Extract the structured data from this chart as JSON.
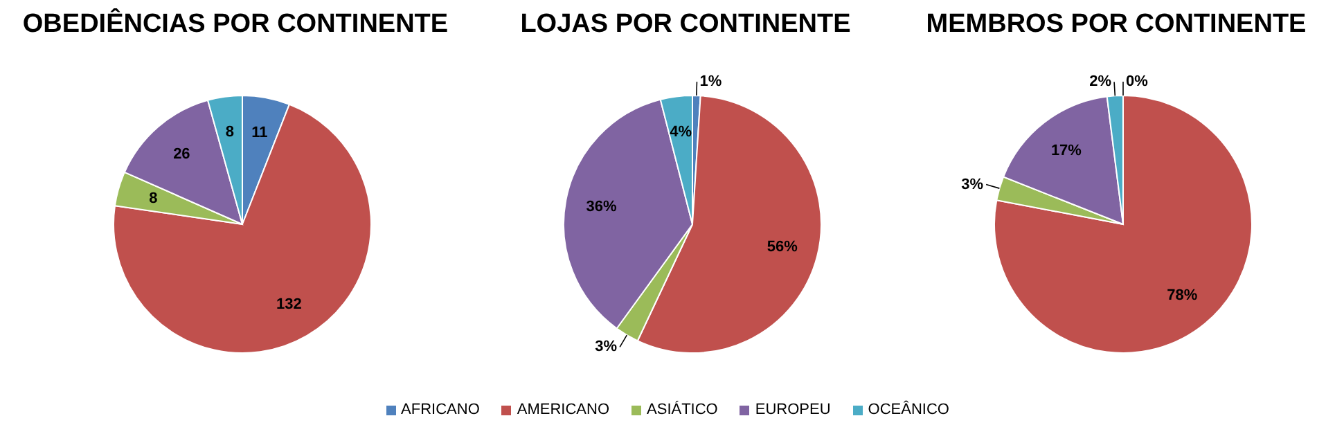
{
  "chart_data": {
    "type": "pie",
    "categories": [
      "AFRICANO",
      "AMERICANO",
      "ASIÁTICO",
      "EUROPEU",
      "OCEÂNICO"
    ],
    "colors": [
      "#4f81bd",
      "#c0504d",
      "#9bbb59",
      "#8064a2",
      "#4bacc6"
    ],
    "data_labels": true,
    "legend": "bottom",
    "series": [
      {
        "name": "OBEDIÊNCIAS POR CONTINENTE",
        "values": [
          11,
          132,
          8,
          26,
          8
        ]
      },
      {
        "name": "LOJAS POR CONTINENTE",
        "values": [
          1,
          56,
          3,
          36,
          4
        ],
        "value_labels": [
          "1%",
          "56%",
          "3%",
          "36%",
          "4%"
        ]
      },
      {
        "name": "MEMBROS POR CONTINENTE",
        "values": [
          0,
          78,
          3,
          17,
          2
        ],
        "value_labels": [
          "0%",
          "78%",
          "3%",
          "17%",
          "2%"
        ]
      }
    ]
  }
}
